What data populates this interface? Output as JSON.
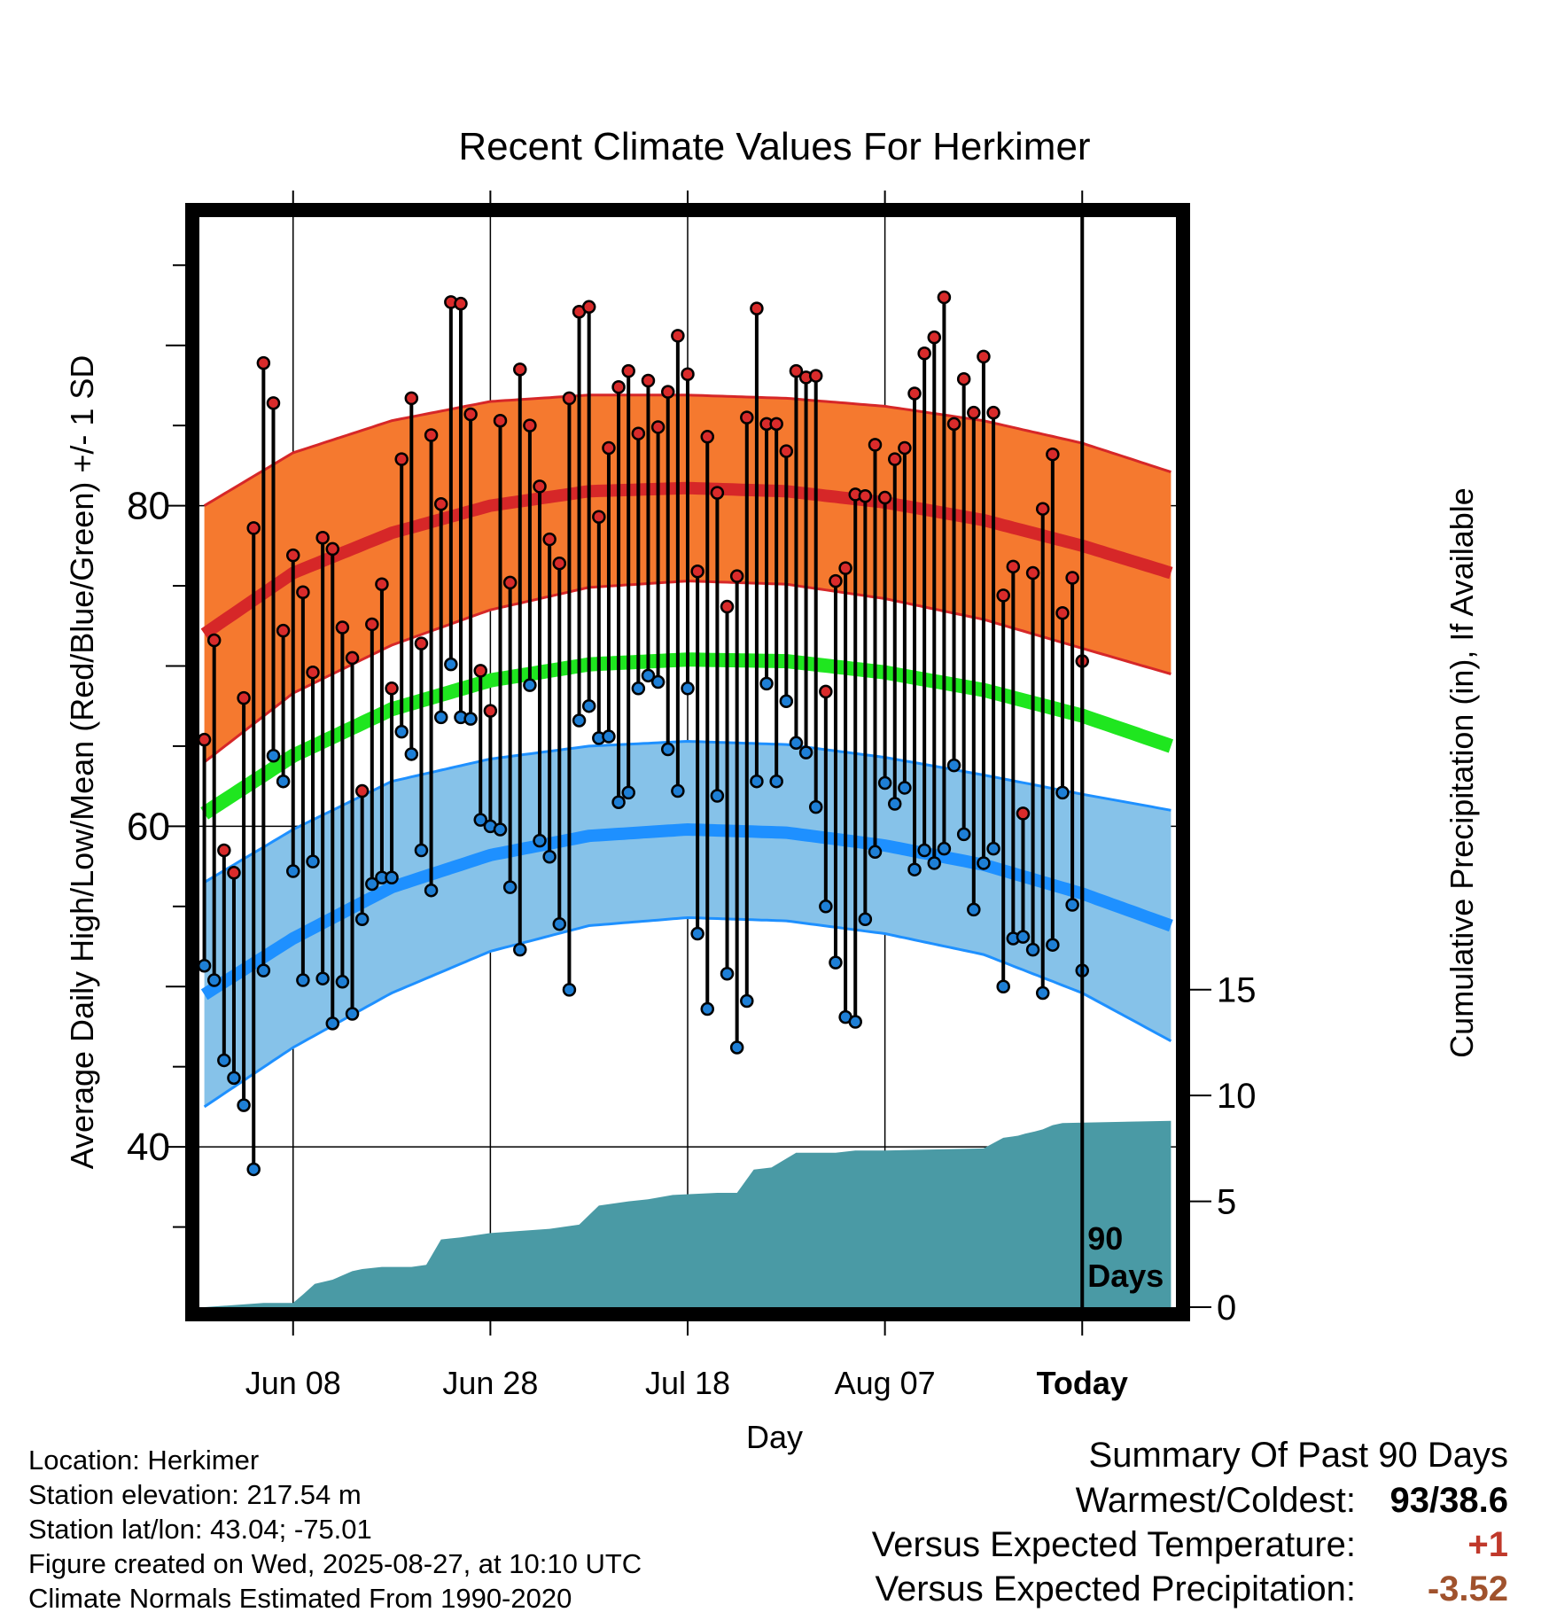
{
  "chart_data": {
    "type": "line",
    "title": "Recent Climate Values For Herkimer",
    "xlabel": "Day",
    "ylabel": "Average Daily High/Low/Mean (Red/Blue/Green) +/- 1 SD",
    "y2label": "Cumulative Precipitation (in), If Available",
    "ylim": [
      30,
      98
    ],
    "y2lim": [
      0,
      51.5
    ],
    "xlim": [
      -89.5,
      9.5
    ],
    "x_unit": "days relative to today (0 = Today, Aug 27)",
    "yticks": [
      "40",
      "60",
      "80"
    ],
    "y2ticks": [
      "0",
      "5",
      "10",
      "15"
    ],
    "xtick_labels": [
      "Jun 08",
      "Jun 28",
      "Jul 18",
      "Aug 07",
      "Today"
    ],
    "xtick_positions": [
      -80,
      -60,
      -40,
      -20,
      0
    ],
    "window_label": "90 Days",
    "grid": true,
    "colors": {
      "high": "#d62728",
      "high_band": "#f5792f",
      "low": "#1e90ff",
      "low_band": "#86c2e9",
      "mean": "#1fe61f",
      "precip": "#4a9aa5",
      "high_point": "#d92b2b",
      "low_point": "#1e7fd6"
    },
    "normals": {
      "x": [
        -89,
        -80,
        -70,
        -60,
        -50,
        -40,
        -30,
        -20,
        -10,
        0,
        9
      ],
      "high_mean": [
        72,
        75.8,
        78.3,
        80.0,
        80.9,
        81.1,
        80.9,
        80.2,
        79.1,
        77.5,
        75.8
      ],
      "high_sd": [
        8.0,
        7.5,
        7.0,
        6.5,
        6.0,
        5.8,
        5.8,
        6.0,
        6.2,
        6.4,
        6.3
      ],
      "low_mean": [
        49.5,
        53.0,
        56.2,
        58.2,
        59.4,
        59.8,
        59.6,
        58.8,
        57.6,
        55.8,
        53.8
      ],
      "low_sd": [
        7.0,
        6.8,
        6.6,
        6.0,
        5.6,
        5.5,
        5.5,
        5.5,
        5.6,
        6.2,
        7.2
      ],
      "mean": [
        60.8,
        64.4,
        67.3,
        69.1,
        70.1,
        70.4,
        70.3,
        69.6,
        68.5,
        66.9,
        65.0
      ]
    },
    "daily": {
      "start_x": -89,
      "high": [
        65.4,
        71.6,
        58.5,
        57.1,
        68,
        78.6,
        88.9,
        86.4,
        72.2,
        76.9,
        74.6,
        69.6,
        78,
        77.3,
        72.4,
        70.5,
        62.2,
        72.6,
        75.1,
        68.6,
        82.9,
        86.7,
        71.4,
        84.4,
        80.1,
        92.7,
        92.6,
        85.7,
        69.7,
        67.2,
        85.3,
        75.2,
        88.5,
        85,
        81.2,
        77.9,
        76.4,
        86.7,
        92.1,
        92.4,
        79.3,
        83.6,
        87.4,
        88.4,
        84.5,
        87.8,
        84.9,
        87.1,
        90.6,
        88.2,
        75.9,
        84.3,
        80.8,
        73.7,
        75.6,
        85.5,
        92.3,
        85.1,
        85.1,
        83.4,
        88.4,
        88,
        88.1,
        68.4,
        75.3,
        76.1,
        80.7,
        80.6,
        83.8,
        80.5,
        82.9,
        83.6,
        87,
        89.5,
        90.5,
        93,
        85.1,
        87.9,
        85.8,
        89.3,
        85.8,
        74.4,
        76.2,
        60.8,
        75.8,
        79.8,
        83.2,
        73.3,
        75.5,
        70.3
      ],
      "low": [
        51.3,
        50.4,
        45.4,
        44.3,
        42.6,
        38.6,
        51,
        64.4,
        62.8,
        57.2,
        50.4,
        57.8,
        50.5,
        47.7,
        50.3,
        48.3,
        54.2,
        56.4,
        56.8,
        56.8,
        65.9,
        64.5,
        58.5,
        56,
        66.8,
        70.1,
        66.8,
        66.7,
        60.4,
        60,
        59.8,
        56.2,
        52.3,
        68.8,
        59.1,
        58.1,
        53.9,
        49.8,
        66.6,
        67.5,
        65.5,
        65.6,
        61.5,
        62.1,
        68.6,
        69.4,
        69,
        64.8,
        62.2,
        68.6,
        53.3,
        48.6,
        61.9,
        50.8,
        46.2,
        49.1,
        62.8,
        68.9,
        62.8,
        67.8,
        65.2,
        64.6,
        61.2,
        55,
        51.5,
        48.1,
        47.8,
        54.2,
        58.4,
        62.7,
        61.4,
        62.4,
        57.3,
        58.5,
        57.7,
        58.6,
        63.8,
        59.5,
        54.8,
        57.7,
        58.6,
        50,
        53,
        53.1,
        52.3,
        49.6,
        52.6,
        62.1,
        55.1,
        51
      ]
    },
    "precip_cumulative": {
      "x": [
        -89,
        -83,
        -80,
        -79,
        -77.8,
        -76,
        -74,
        -73,
        -71,
        -68,
        -66.5,
        -65,
        -63,
        -60,
        -57,
        -54,
        -51,
        -49,
        -46,
        -44,
        -41.5,
        -37,
        -35,
        -33.3,
        -31.5,
        -29,
        -25,
        -23,
        -20,
        -10,
        -8,
        -6.5,
        -5.8,
        -4.8,
        -4,
        -3,
        -2,
        9
      ],
      "y": [
        0,
        0.2,
        0.2,
        0.6,
        1.1,
        1.3,
        1.7,
        1.8,
        1.9,
        1.9,
        2.0,
        3.2,
        3.3,
        3.5,
        3.6,
        3.7,
        3.9,
        4.8,
        5.0,
        5.1,
        5.3,
        5.4,
        5.4,
        6.5,
        6.6,
        7.3,
        7.3,
        7.4,
        7.4,
        7.5,
        8.0,
        8.1,
        8.2,
        8.3,
        8.4,
        8.6,
        8.7,
        8.8
      ]
    }
  },
  "info": {
    "location": "Location: Herkimer",
    "elevation": "Station elevation: 217.54 m",
    "latlon": "Station lat/lon: 43.04; -75.01",
    "created": "Figure created on Wed, 2025-08-27, at 10:10 UTC",
    "normals": "Climate Normals Estimated From 1990-2020"
  },
  "summary": {
    "header": "Summary Of Past 90 Days",
    "warmest_coldest_label": "Warmest/Coldest:",
    "warmest_coldest_value": "93/38.6",
    "temp_label": "Versus Expected Temperature:",
    "temp_value": "+1",
    "temp_color": "#c0392b",
    "precip_label": "Versus Expected Precipitation:",
    "precip_value": "-3.52",
    "precip_color": "#a0522d"
  }
}
